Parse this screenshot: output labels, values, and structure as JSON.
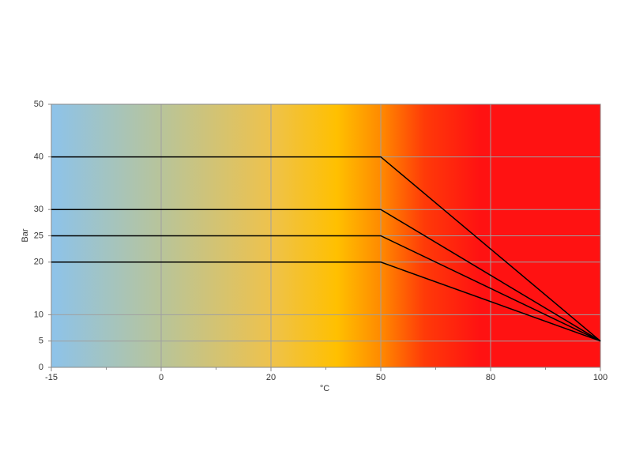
{
  "chart_data": {
    "type": "line",
    "x_label": "°C",
    "y_label": "Bar",
    "categories": [
      "-15",
      "0",
      "20",
      "50",
      "80",
      "100"
    ],
    "series": [
      {
        "color": "#000000",
        "values": [
          40,
          40,
          40,
          40,
          22.5,
          5
        ]
      },
      {
        "color": "#000000",
        "values": [
          30,
          30,
          30,
          30,
          17.5,
          5
        ]
      },
      {
        "color": "#000000",
        "values": [
          25,
          25,
          25,
          25,
          15,
          5
        ]
      },
      {
        "color": "#000000",
        "values": [
          20,
          20,
          20,
          20,
          12.5,
          5
        ]
      }
    ],
    "ylim": [
      0,
      50
    ],
    "yticks": [
      0,
      5,
      10,
      20,
      25,
      30,
      40,
      50
    ],
    "grid": true
  }
}
